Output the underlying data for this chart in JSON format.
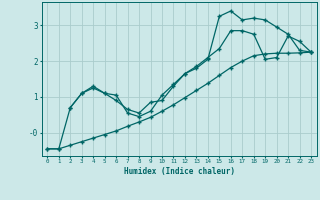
{
  "xlabel": "Humidex (Indice chaleur)",
  "bg_color": "#cce8e8",
  "grid_color": "#aacccc",
  "line_color": "#006666",
  "xlim": [
    -0.5,
    23.5
  ],
  "ylim": [
    -0.65,
    3.65
  ],
  "line1_x": [
    0,
    1,
    2,
    3,
    4,
    5,
    6,
    7,
    8,
    9,
    10,
    11,
    12,
    13,
    14,
    15,
    16,
    17,
    18,
    19,
    20,
    21,
    22,
    23
  ],
  "line1_y": [
    -0.45,
    -0.45,
    -0.35,
    -0.25,
    -0.15,
    -0.05,
    0.05,
    0.18,
    0.3,
    0.43,
    0.6,
    0.78,
    0.98,
    1.18,
    1.38,
    1.6,
    1.82,
    2.0,
    2.15,
    2.2,
    2.22,
    2.22,
    2.23,
    2.25
  ],
  "line2_x": [
    0,
    1,
    2,
    3,
    4,
    5,
    6,
    7,
    8,
    9,
    10,
    11,
    12,
    13,
    14,
    15,
    16,
    17,
    18,
    19,
    20,
    21,
    22,
    23
  ],
  "line2_y": [
    -0.45,
    -0.45,
    0.7,
    1.1,
    1.3,
    1.1,
    0.9,
    0.65,
    0.55,
    0.85,
    0.9,
    1.3,
    1.65,
    1.8,
    2.05,
    3.25,
    3.4,
    3.15,
    3.2,
    3.15,
    2.95,
    2.75,
    2.3,
    2.25
  ],
  "line3_x": [
    2,
    3,
    4,
    5,
    6,
    7,
    8,
    9,
    10,
    11,
    12,
    13,
    14,
    15,
    16,
    17,
    18,
    19,
    20,
    21,
    22,
    23
  ],
  "line3_y": [
    0.7,
    1.1,
    1.25,
    1.1,
    1.05,
    0.55,
    0.45,
    0.6,
    1.05,
    1.35,
    1.65,
    1.85,
    2.1,
    2.35,
    2.85,
    2.85,
    2.75,
    2.05,
    2.1,
    2.7,
    2.55,
    2.25
  ]
}
